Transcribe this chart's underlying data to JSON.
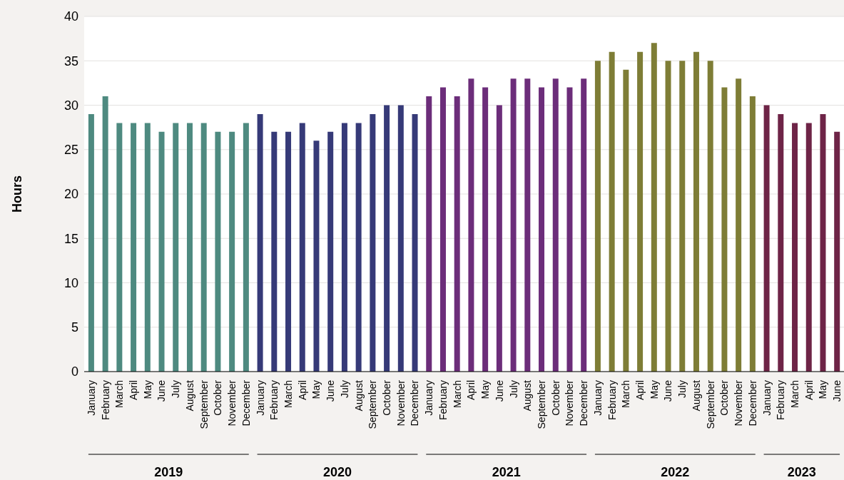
{
  "chart_data": {
    "type": "bar",
    "ylabel": "Hours",
    "annotations": [
      "2019",
      "2020",
      "2021",
      "2022",
      "2023"
    ],
    "stacked": true,
    "legend": false,
    "grid": "y",
    "ylim": [
      0,
      40
    ],
    "yticks": [
      0,
      5,
      10,
      15,
      20,
      25,
      30,
      35,
      40
    ],
    "categories": [
      "January",
      "February",
      "March",
      "April",
      "May",
      "June",
      "July",
      "August",
      "September",
      "October",
      "November",
      "December",
      "January",
      "February",
      "March",
      "April",
      "May",
      "June",
      "July",
      "August",
      "September",
      "October",
      "November",
      "December",
      "January",
      "February",
      "March",
      "April",
      "May",
      "June",
      "July",
      "August",
      "September",
      "October",
      "November",
      "December",
      "January",
      "February",
      "March",
      "April",
      "May",
      "June",
      "July",
      "August",
      "September",
      "October",
      "November",
      "December",
      "January",
      "February",
      "March",
      "April",
      "May",
      "June"
    ],
    "series": [
      {
        "color": "#4e8a80",
        "values": [
          29,
          31,
          28,
          28,
          28,
          27,
          28,
          28,
          28,
          27,
          27,
          28,
          null,
          null,
          null,
          null,
          null,
          null,
          null,
          null,
          null,
          null,
          null,
          null,
          null,
          null,
          null,
          null,
          null,
          null,
          null,
          null,
          null,
          null,
          null,
          null,
          null,
          null,
          null,
          null,
          null,
          null,
          null,
          null,
          null,
          null,
          null,
          null,
          null,
          null,
          null,
          null,
          null,
          null
        ]
      },
      {
        "color": "#363a78",
        "values": [
          null,
          null,
          null,
          null,
          null,
          null,
          null,
          null,
          null,
          null,
          null,
          null,
          29,
          27,
          27,
          28,
          26,
          27,
          28,
          28,
          29,
          30,
          30,
          29,
          null,
          null,
          null,
          null,
          null,
          null,
          null,
          null,
          null,
          null,
          null,
          null,
          null,
          null,
          null,
          null,
          null,
          null,
          null,
          null,
          null,
          null,
          null,
          null,
          null,
          null,
          null,
          null,
          null,
          null
        ]
      },
      {
        "color": "#6c2d7a",
        "values": [
          null,
          null,
          null,
          null,
          null,
          null,
          null,
          null,
          null,
          null,
          null,
          null,
          null,
          null,
          null,
          null,
          null,
          null,
          null,
          null,
          null,
          null,
          null,
          null,
          31,
          32,
          31,
          33,
          32,
          30,
          33,
          33,
          32,
          33,
          32,
          33,
          null,
          null,
          null,
          null,
          null,
          null,
          null,
          null,
          null,
          null,
          null,
          null,
          null,
          null,
          null,
          null,
          null,
          null
        ]
      },
      {
        "color": "#7e7d36",
        "values": [
          null,
          null,
          null,
          null,
          null,
          null,
          null,
          null,
          null,
          null,
          null,
          null,
          null,
          null,
          null,
          null,
          null,
          null,
          null,
          null,
          null,
          null,
          null,
          null,
          null,
          null,
          null,
          null,
          null,
          null,
          null,
          null,
          null,
          null,
          null,
          null,
          35,
          36,
          34,
          36,
          37,
          35,
          35,
          36,
          35,
          32,
          33,
          31,
          null,
          null,
          null,
          null,
          null,
          null
        ]
      },
      {
        "color": "#6e2447",
        "values": [
          null,
          null,
          null,
          null,
          null,
          null,
          null,
          null,
          null,
          null,
          null,
          null,
          null,
          null,
          null,
          null,
          null,
          null,
          null,
          null,
          null,
          null,
          null,
          null,
          null,
          null,
          null,
          null,
          null,
          null,
          null,
          null,
          null,
          null,
          null,
          null,
          null,
          null,
          null,
          null,
          null,
          null,
          null,
          null,
          null,
          null,
          null,
          null,
          30,
          29,
          28,
          28,
          29,
          27
        ]
      }
    ]
  }
}
